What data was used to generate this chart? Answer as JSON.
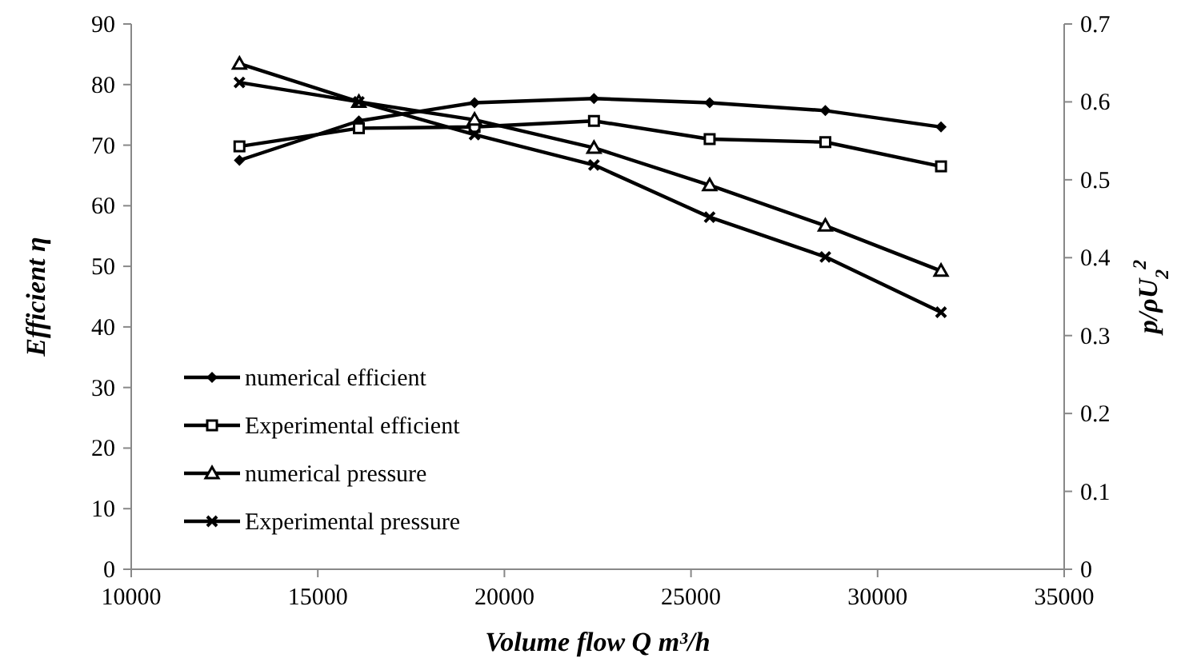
{
  "chart_data": {
    "type": "line",
    "xlabel": "Volume flow Q m³/h",
    "ylabel": "Efficient η",
    "y2label": "p/ρU$_{2}$$^{2}$",
    "x": [
      12900,
      16100,
      19200,
      22400,
      25500,
      28600,
      31700
    ],
    "xlim": [
      10000,
      35000
    ],
    "xticks": [
      10000,
      15000,
      20000,
      25000,
      30000,
      35000
    ],
    "ylim": [
      0,
      90
    ],
    "yticks": [
      0,
      10,
      20,
      30,
      40,
      50,
      60,
      70,
      80,
      90
    ],
    "y2lim": [
      0,
      0.7
    ],
    "y2ticks": [
      0,
      0.1,
      0.2,
      0.3,
      0.4,
      0.5,
      0.6,
      0.7
    ],
    "grid": false,
    "legend": "bottom left",
    "line_style": "solid",
    "series": [
      {
        "name": "numerical efficient",
        "color": "#000000",
        "marker": "diamond",
        "values": [
          67.5,
          74,
          77,
          77.7,
          77,
          75.7,
          73
        ]
      },
      {
        "name": "Experimental efficient",
        "color": "#000000",
        "marker": "square",
        "values": [
          69.8,
          72.8,
          73,
          74,
          71,
          70.5,
          66.5
        ]
      },
      {
        "name": "numerical pressure",
        "color": "#000000",
        "marker": "triangle",
        "axis": "y2",
        "values": [
          0.649,
          0.6,
          0.577,
          0.541,
          0.493,
          0.441,
          0.383
        ]
      },
      {
        "name": "Experimental pressure",
        "color": "#000000",
        "marker": "cross",
        "axis": "y2",
        "values": [
          0.625,
          0.6,
          0.558,
          0.519,
          0.452,
          0.401,
          0.33
        ]
      }
    ]
  }
}
